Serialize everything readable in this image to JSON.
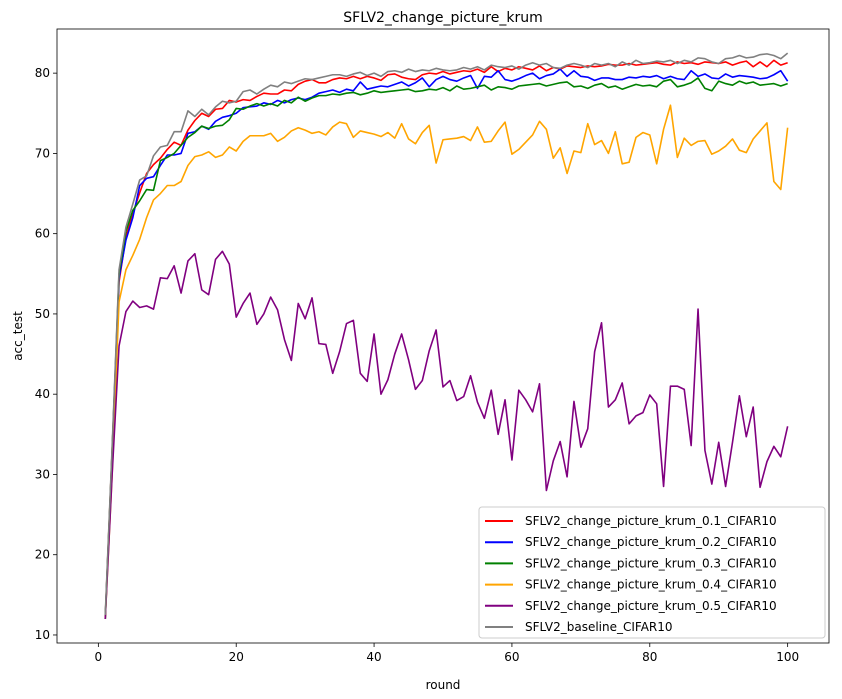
{
  "chart_data": {
    "type": "line",
    "title": "SFLV2_change_picture_krum",
    "xlabel": "round",
    "ylabel": "acc_test",
    "xlim": [
      -6,
      106
    ],
    "ylim": [
      9,
      85.5
    ],
    "xticks": [
      0,
      20,
      40,
      60,
      80,
      100
    ],
    "yticks": [
      10,
      20,
      30,
      40,
      50,
      60,
      70,
      80
    ],
    "grid": false,
    "legend_position": "lower-right",
    "x": [
      1,
      2,
      3,
      4,
      5,
      6,
      7,
      8,
      9,
      10,
      11,
      12,
      13,
      14,
      15,
      16,
      17,
      18,
      19,
      20,
      21,
      22,
      23,
      24,
      25,
      26,
      27,
      28,
      29,
      30,
      31,
      32,
      33,
      34,
      35,
      36,
      37,
      38,
      39,
      40,
      41,
      42,
      43,
      44,
      45,
      46,
      47,
      48,
      49,
      50,
      51,
      52,
      53,
      54,
      55,
      56,
      57,
      58,
      59,
      60,
      61,
      62,
      63,
      64,
      65,
      66,
      67,
      68,
      69,
      70,
      71,
      72,
      73,
      74,
      75,
      76,
      77,
      78,
      79,
      80,
      81,
      82,
      83,
      84,
      85,
      86,
      87,
      88,
      89,
      90,
      91,
      92,
      93,
      94,
      95,
      96,
      97,
      98,
      99,
      100
    ],
    "series": [
      {
        "name": "SFLV2_change_picture_krum_0.1_CIFAR10",
        "color": "#ff0000",
        "values": [
          12.2,
          33.0,
          54.0,
          59.6,
          62.5,
          65.1,
          67.5,
          68.6,
          69.4,
          70.5,
          71.4,
          71.0,
          72.9,
          74.1,
          75.0,
          74.6,
          75.5,
          75.6,
          76.6,
          76.4,
          76.7,
          76.6,
          77.1,
          77.5,
          77.4,
          77.4,
          77.9,
          77.8,
          78.6,
          79.0,
          79.2,
          78.8,
          78.8,
          79.2,
          79.4,
          79.3,
          79.6,
          79.3,
          79.6,
          79.4,
          79.1,
          79.8,
          79.9,
          79.5,
          79.3,
          79.2,
          79.8,
          80.0,
          79.9,
          80.2,
          79.9,
          80.1,
          80.3,
          80.2,
          80.5,
          80.1,
          80.8,
          80.2,
          80.6,
          80.4,
          80.8,
          80.6,
          80.4,
          80.9,
          80.3,
          80.7,
          80.5,
          80.9,
          80.8,
          80.7,
          80.9,
          80.8,
          80.9,
          81.1,
          81.0,
          81.0,
          81.2,
          81.0,
          81.1,
          81.2,
          81.3,
          81.1,
          81.0,
          81.4,
          81.2,
          81.3,
          81.1,
          81.4,
          81.3,
          81.2,
          81.4,
          81.0,
          81.3,
          81.5,
          80.8,
          81.4,
          80.8,
          81.6,
          81.0,
          81.3
        ]
      },
      {
        "name": "SFLV2_change_picture_krum_0.2_CIFAR10",
        "color": "#0000ff",
        "values": [
          12.0,
          32.5,
          54.5,
          59.2,
          62.0,
          66.0,
          66.9,
          67.1,
          68.5,
          69.8,
          69.8,
          70.0,
          72.5,
          72.7,
          73.4,
          73.0,
          74.0,
          74.5,
          74.7,
          75.0,
          75.7,
          75.8,
          75.9,
          76.3,
          76.1,
          76.6,
          76.3,
          76.7,
          76.9,
          76.7,
          77.0,
          77.5,
          77.7,
          77.9,
          77.6,
          78.0,
          77.8,
          78.9,
          78.0,
          78.2,
          78.4,
          78.3,
          78.6,
          78.9,
          78.4,
          78.8,
          79.4,
          78.3,
          79.2,
          79.6,
          79.2,
          79.0,
          79.4,
          79.7,
          78.1,
          79.6,
          79.5,
          80.3,
          79.2,
          79.0,
          79.3,
          79.7,
          80.0,
          79.3,
          79.7,
          79.9,
          80.5,
          79.6,
          80.3,
          79.6,
          79.5,
          79.1,
          79.4,
          79.4,
          79.2,
          79.2,
          79.5,
          79.4,
          79.6,
          79.5,
          79.7,
          79.3,
          79.6,
          79.3,
          79.2,
          80.3,
          79.6,
          79.9,
          79.4,
          79.3,
          79.9,
          79.5,
          79.7,
          79.6,
          79.5,
          79.3,
          79.4,
          79.8,
          80.3,
          79.0
        ]
      },
      {
        "name": "SFLV2_change_picture_krum_0.3_CIFAR10",
        "color": "#008000",
        "values": [
          12.0,
          33.0,
          55.0,
          60.3,
          62.9,
          64.1,
          65.5,
          65.4,
          69.1,
          69.5,
          70.0,
          71.0,
          72.0,
          72.6,
          73.4,
          73.1,
          73.4,
          73.5,
          74.2,
          75.6,
          75.5,
          75.9,
          76.2,
          75.9,
          76.2,
          75.9,
          76.6,
          76.3,
          77.0,
          76.5,
          76.9,
          77.2,
          77.2,
          77.4,
          77.3,
          77.5,
          77.6,
          77.3,
          77.5,
          77.8,
          77.6,
          77.7,
          77.8,
          77.9,
          78.0,
          77.7,
          77.8,
          78.0,
          77.9,
          78.2,
          77.8,
          78.4,
          78.0,
          78.1,
          78.3,
          78.5,
          77.9,
          78.3,
          78.2,
          78.0,
          78.4,
          78.5,
          78.6,
          78.7,
          78.4,
          78.6,
          78.8,
          78.9,
          78.3,
          78.4,
          78.1,
          78.5,
          78.7,
          78.2,
          78.4,
          78.0,
          78.3,
          78.6,
          78.4,
          78.5,
          78.3,
          79.0,
          79.2,
          78.3,
          78.5,
          78.8,
          79.4,
          78.1,
          77.8,
          79.0,
          78.7,
          78.5,
          79.0,
          78.7,
          78.9,
          78.5,
          78.6,
          78.7,
          78.4,
          78.7
        ]
      },
      {
        "name": "SFLV2_change_picture_krum_0.4_CIFAR10",
        "color": "#ffa500",
        "values": [
          12.0,
          30.0,
          51.5,
          55.5,
          57.3,
          59.3,
          62.0,
          64.2,
          65.0,
          66.0,
          66.0,
          66.5,
          68.5,
          69.6,
          69.8,
          70.2,
          69.5,
          69.8,
          70.8,
          70.3,
          71.5,
          72.2,
          72.2,
          72.2,
          72.5,
          71.5,
          72.0,
          72.8,
          73.2,
          72.9,
          72.5,
          72.7,
          72.3,
          73.3,
          73.9,
          73.7,
          72.0,
          72.8,
          72.6,
          72.4,
          72.1,
          72.6,
          71.9,
          73.7,
          71.8,
          71.2,
          72.6,
          73.5,
          68.8,
          71.7,
          71.8,
          71.9,
          72.1,
          71.6,
          73.3,
          71.4,
          71.5,
          72.8,
          73.9,
          69.9,
          70.5,
          71.4,
          72.3,
          74.0,
          73.0,
          69.4,
          70.7,
          67.5,
          70.3,
          70.1,
          73.7,
          71.1,
          71.6,
          70.0,
          72.7,
          68.7,
          68.9,
          72.0,
          72.6,
          72.3,
          68.7,
          73.0,
          76.0,
          69.5,
          71.9,
          71.0,
          71.5,
          71.6,
          69.9,
          70.3,
          70.9,
          71.8,
          70.4,
          70.1,
          71.8,
          72.8,
          73.8,
          66.5,
          65.5,
          73.2
        ]
      },
      {
        "name": "SFLV2_change_picture_krum_0.5_CIFAR10",
        "color": "#800080",
        "values": [
          12.0,
          30.0,
          46.0,
          50.3,
          51.6,
          50.8,
          51.0,
          50.6,
          54.5,
          54.4,
          56.0,
          52.6,
          56.6,
          57.5,
          53.0,
          52.4,
          56.8,
          57.8,
          56.2,
          49.6,
          51.3,
          52.6,
          48.7,
          50.0,
          52.1,
          50.5,
          46.8,
          44.2,
          51.3,
          49.4,
          52.0,
          46.3,
          46.2,
          42.6,
          45.3,
          48.8,
          49.2,
          42.6,
          41.6,
          47.5,
          40.0,
          41.8,
          45.0,
          47.5,
          44.3,
          40.6,
          41.7,
          45.4,
          48.0,
          40.9,
          41.7,
          39.2,
          39.7,
          42.3,
          39.0,
          37.0,
          40.5,
          35.0,
          39.3,
          31.8,
          40.5,
          39.3,
          37.8,
          41.3,
          28.0,
          31.7,
          34.1,
          29.7,
          39.1,
          33.4,
          35.7,
          45.3,
          48.9,
          38.4,
          39.3,
          41.4,
          36.3,
          37.3,
          37.7,
          39.9,
          38.8,
          28.5,
          41.0,
          41.0,
          40.6,
          33.6,
          50.6,
          33.0,
          28.8,
          34.0,
          28.5,
          34.0,
          39.8,
          34.7,
          38.4,
          28.4,
          31.6,
          33.5,
          32.2,
          36.0
        ]
      },
      {
        "name": "SFLV2_baseline_CIFAR10",
        "color": "#808080",
        "values": [
          12.5,
          33.5,
          55.5,
          60.8,
          63.7,
          66.7,
          67.2,
          69.7,
          70.8,
          71.0,
          72.7,
          72.7,
          75.3,
          74.6,
          75.5,
          74.8,
          75.8,
          76.5,
          76.3,
          76.5,
          77.7,
          77.9,
          77.4,
          78.0,
          78.5,
          78.3,
          78.9,
          78.7,
          79.0,
          79.3,
          79.2,
          79.4,
          79.6,
          79.8,
          79.8,
          79.6,
          79.9,
          80.1,
          79.7,
          80.0,
          79.6,
          80.2,
          80.3,
          80.1,
          80.5,
          80.2,
          80.4,
          80.3,
          80.6,
          80.4,
          80.3,
          80.4,
          80.7,
          80.5,
          80.8,
          80.4,
          81.0,
          80.8,
          80.7,
          80.9,
          80.5,
          81.0,
          81.3,
          81.0,
          81.2,
          80.7,
          80.6,
          81.0,
          81.2,
          81.0,
          80.7,
          81.2,
          81.0,
          81.2,
          80.8,
          81.4,
          81.0,
          81.6,
          81.2,
          81.3,
          81.5,
          81.4,
          81.6,
          81.2,
          81.6,
          81.4,
          81.9,
          81.8,
          81.4,
          81.2,
          81.8,
          81.9,
          82.2,
          81.9,
          82.0,
          82.3,
          82.4,
          82.2,
          81.8,
          82.5
        ]
      }
    ]
  }
}
